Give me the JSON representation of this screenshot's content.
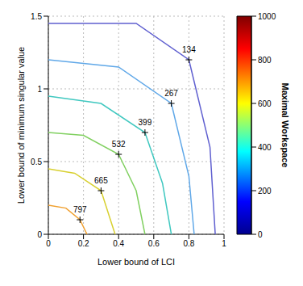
{
  "chart_data": {
    "type": "contour",
    "x_label": "Lower bound of LCI",
    "y_label": "Lower bound of minimum singular value",
    "xlim": [
      0,
      1
    ],
    "xticks": [
      0,
      0.2,
      0.4,
      0.6,
      0.8,
      1
    ],
    "ylim": [
      0,
      1.5
    ],
    "yticks": [
      0,
      0.5,
      1,
      1.5
    ],
    "grid": true,
    "series": [
      {
        "name": "797",
        "level": 797,
        "color": "#f0a030",
        "x": [
          0,
          0.1,
          0.18,
          0.22
        ],
        "y": [
          0.2,
          0.18,
          0.1,
          0
        ]
      },
      {
        "name": "665",
        "level": 665,
        "color": "#d8d030",
        "x": [
          0,
          0.15,
          0.3,
          0.38
        ],
        "y": [
          0.45,
          0.42,
          0.3,
          0
        ]
      },
      {
        "name": "532",
        "level": 532,
        "color": "#80d060",
        "x": [
          0,
          0.2,
          0.4,
          0.5,
          0.55
        ],
        "y": [
          0.7,
          0.68,
          0.55,
          0.3,
          0
        ]
      },
      {
        "name": "399",
        "level": 399,
        "color": "#40c8c0",
        "x": [
          0,
          0.3,
          0.55,
          0.65,
          0.7
        ],
        "y": [
          0.95,
          0.9,
          0.7,
          0.35,
          0
        ]
      },
      {
        "name": "267",
        "level": 267,
        "color": "#60a8e8",
        "x": [
          0,
          0.4,
          0.7,
          0.8,
          0.83
        ],
        "y": [
          1.2,
          1.15,
          0.9,
          0.4,
          0
        ]
      },
      {
        "name": "134",
        "level": 134,
        "color": "#6060d0",
        "x": [
          0,
          0.5,
          0.8,
          0.92,
          0.95
        ],
        "y": [
          1.45,
          1.45,
          1.2,
          0.6,
          0
        ]
      }
    ],
    "colorbar": {
      "label": "Maximal Workspace",
      "range": [
        0,
        1000
      ],
      "ticks": [
        0,
        200,
        400,
        600,
        800,
        1000
      ]
    }
  }
}
